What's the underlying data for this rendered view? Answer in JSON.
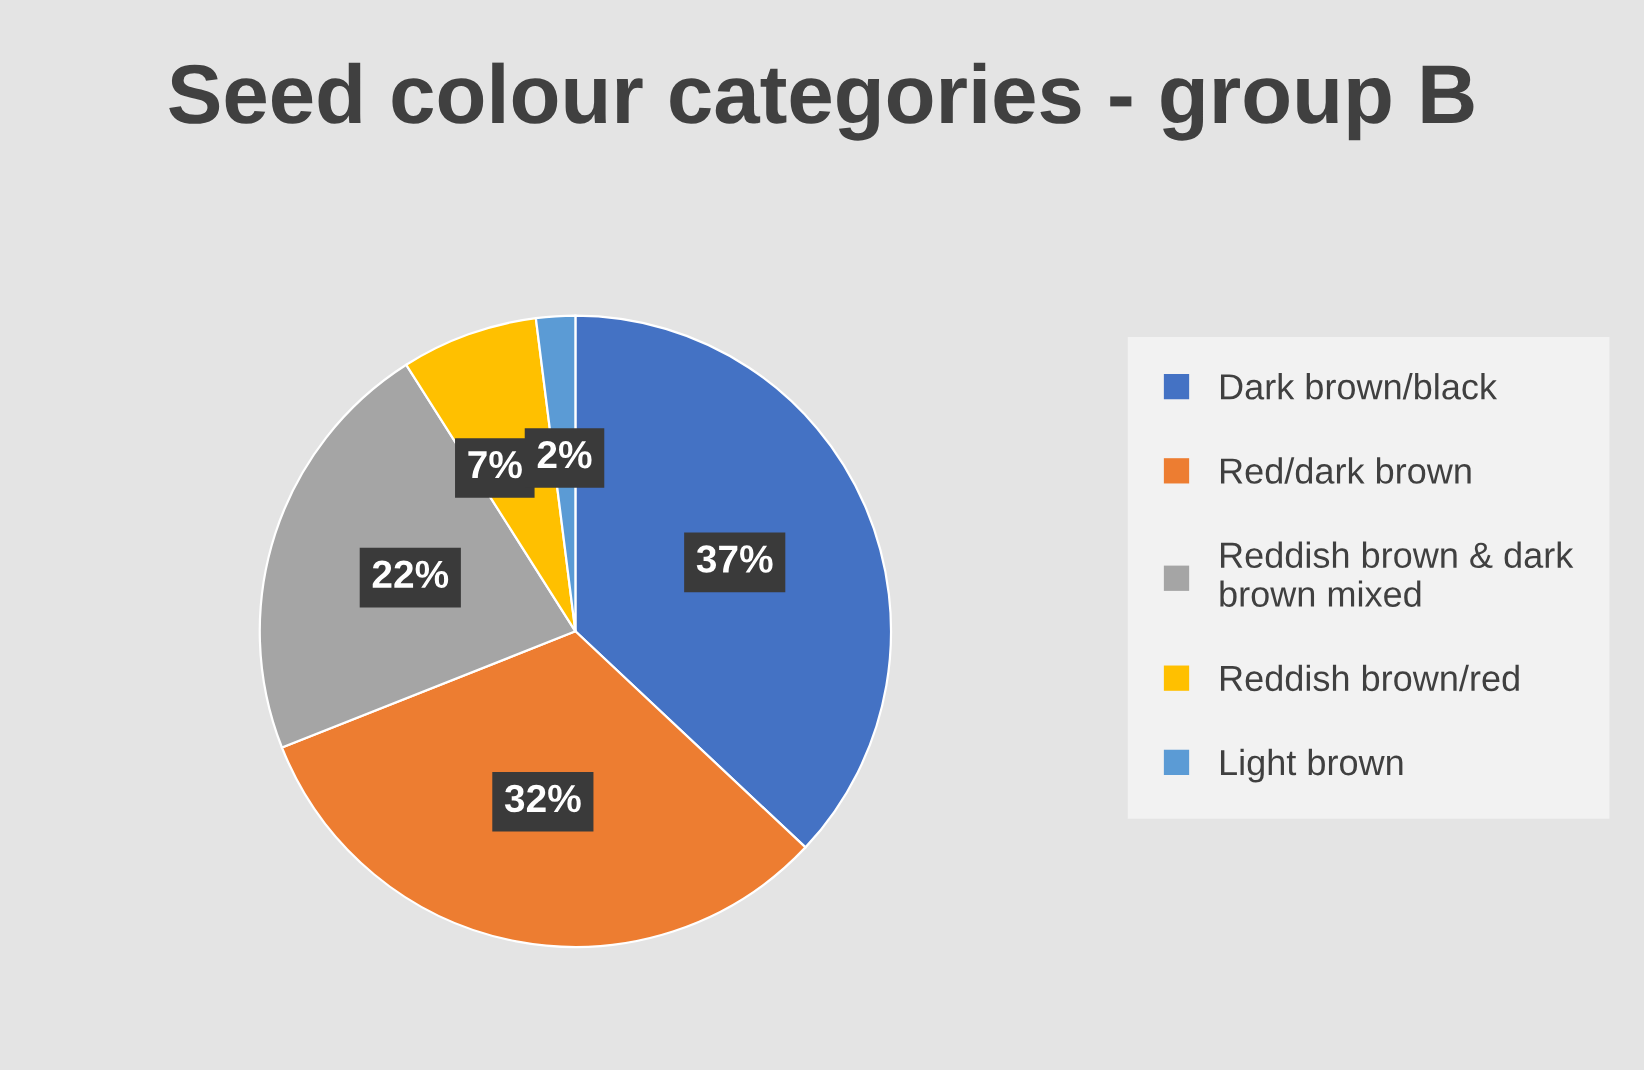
{
  "chart_data": {
    "type": "pie",
    "title": "Seed colour categories - group B",
    "categories": [
      "Dark brown/black",
      "Red/dark brown",
      "Reddish brown & dark brown mixed",
      "Reddish brown/red",
      "Light brown"
    ],
    "values": [
      37,
      32,
      22,
      7,
      2
    ],
    "colors": [
      "#4472c4",
      "#ed7d31",
      "#a5a5a5",
      "#ffc000",
      "#5b9bd5"
    ],
    "value_labels": [
      "37%",
      "32%",
      "22%",
      "7%",
      "2%"
    ],
    "legend": "right"
  }
}
